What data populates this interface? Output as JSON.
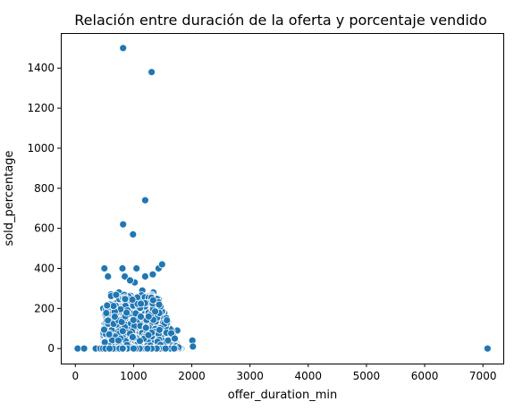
{
  "chart_data": {
    "type": "scatter",
    "title": "Relación entre duración de la oferta y porcentaje vendido",
    "xlabel": "offer_duration_min",
    "ylabel": "sold_percentage",
    "xlim": [
      -250,
      7350
    ],
    "ylim": [
      -75,
      1575
    ],
    "xticks": [
      "0",
      "1000",
      "2000",
      "3000",
      "4000",
      "5000",
      "6000",
      "7000"
    ],
    "yticks": [
      "0",
      "200",
      "400",
      "600",
      "800",
      "1000",
      "1200",
      "1400"
    ],
    "grid": false,
    "legend": "none",
    "marker_color": "#1f77b4",
    "points": [
      [
        820,
        1500
      ],
      [
        1310,
        1380
      ],
      [
        1200,
        740
      ],
      [
        820,
        620
      ],
      [
        990,
        570
      ],
      [
        7080,
        0
      ],
      [
        500,
        400
      ],
      [
        810,
        400
      ],
      [
        1050,
        400
      ],
      [
        1430,
        400
      ],
      [
        1490,
        420
      ],
      [
        560,
        360
      ],
      [
        850,
        360
      ],
      [
        1200,
        360
      ],
      [
        1330,
        370
      ],
      [
        1020,
        330
      ],
      [
        940,
        340
      ],
      [
        750,
        280
      ],
      [
        1150,
        290
      ],
      [
        1340,
        280
      ],
      [
        610,
        270
      ],
      [
        1270,
        260
      ],
      [
        480,
        200
      ],
      [
        1460,
        190
      ],
      [
        1620,
        90
      ],
      [
        1750,
        90
      ],
      [
        1820,
        0
      ],
      [
        2010,
        40
      ],
      [
        2020,
        10
      ],
      [
        40,
        0
      ],
      [
        150,
        0
      ],
      [
        350,
        0
      ],
      [
        430,
        0
      ],
      [
        500,
        120
      ],
      [
        700,
        150
      ],
      [
        900,
        100
      ],
      [
        1100,
        50
      ],
      [
        1300,
        50
      ],
      [
        1500,
        120
      ],
      [
        1700,
        10
      ],
      [
        560,
        30
      ],
      [
        640,
        60
      ],
      [
        960,
        20
      ],
      [
        1560,
        40
      ],
      [
        1640,
        50
      ]
    ]
  }
}
